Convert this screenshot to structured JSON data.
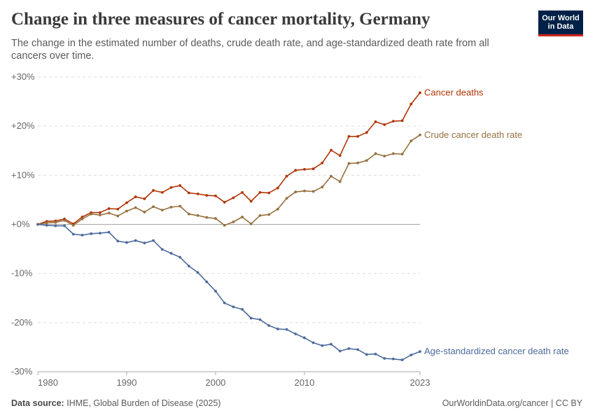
{
  "header": {
    "title": "Change in three measures of cancer mortality, Germany",
    "subtitle": "The change in the estimated number of deaths, crude death rate, and age-standardized death rate from all cancers over time.",
    "logo_line1": "Our World",
    "logo_line2": "in Data"
  },
  "footer": {
    "source_label": "Data source:",
    "source_text": "IHME, Global Burden of Disease (2025)",
    "credit": "OurWorldinData.org/cancer | CC BY"
  },
  "colors": {
    "cancer_deaths": "#b13507",
    "crude_rate": "#96703f",
    "age_standardized": "#4c6a9c",
    "grid": "#dddddd",
    "zero_line": "#a8a8a8",
    "axis_text": "#666666"
  },
  "chart_data": {
    "type": "line",
    "title": "Change in three measures of cancer mortality, Germany",
    "subtitle": "The change in the estimated number of deaths, crude death rate, and age-standardized death rate from all cancers over time.",
    "xlim": [
      1980,
      2023
    ],
    "ylim": [
      -30,
      30
    ],
    "y_ticks": [
      30,
      20,
      10,
      0,
      -10,
      -20,
      -30
    ],
    "y_tick_labels": [
      "+30%",
      "+20%",
      "+10%",
      "+0%",
      "-10%",
      "-20%",
      "-30%"
    ],
    "x_ticks": [
      1980,
      1990,
      2000,
      2010,
      2023
    ],
    "x_tick_labels": [
      "1980",
      "1990",
      "2000",
      "2010",
      "2023"
    ],
    "grid": "horizontal dashed",
    "legend": "line-end labels on the right",
    "x": [
      1980,
      1981,
      1982,
      1983,
      1984,
      1985,
      1986,
      1987,
      1988,
      1989,
      1990,
      1991,
      1992,
      1993,
      1994,
      1995,
      1996,
      1997,
      1998,
      1999,
      2000,
      2001,
      2002,
      2003,
      2004,
      2005,
      2006,
      2007,
      2008,
      2009,
      2010,
      2011,
      2012,
      2013,
      2014,
      2015,
      2016,
      2017,
      2018,
      2019,
      2020,
      2021,
      2022,
      2023
    ],
    "series": [
      {
        "name": "Cancer deaths",
        "key": "cancer_deaths",
        "values": [
          0,
          0.6,
          0.7,
          1.1,
          0.1,
          1.5,
          2.4,
          2.4,
          3.2,
          3.1,
          4.4,
          5.6,
          5.2,
          6.9,
          6.5,
          7.5,
          7.9,
          6.4,
          6.2,
          5.9,
          5.8,
          4.5,
          5.4,
          6.5,
          4.7,
          6.5,
          6.4,
          7.4,
          9.8,
          11.0,
          11.2,
          11.3,
          12.5,
          15.1,
          14.0,
          17.9,
          17.9,
          18.7,
          20.9,
          20.3,
          21.0,
          21.1,
          24.5,
          26.8
        ]
      },
      {
        "name": "Crude cancer death rate",
        "key": "crude_rate",
        "values": [
          0,
          0.3,
          0.4,
          0.8,
          -0.2,
          1.1,
          2.1,
          1.9,
          2.3,
          1.7,
          2.7,
          3.4,
          2.5,
          3.6,
          2.9,
          3.5,
          3.7,
          2.1,
          1.8,
          1.4,
          1.2,
          -0.2,
          0.5,
          1.5,
          0.1,
          1.8,
          2.0,
          3.1,
          5.3,
          6.6,
          6.8,
          6.7,
          7.6,
          9.8,
          8.7,
          12.4,
          12.5,
          13.0,
          14.4,
          13.9,
          14.4,
          14.3,
          17.0,
          18.2
        ]
      },
      {
        "name": "Age-standardized cancer death rate",
        "key": "age_standardized",
        "values": [
          0,
          -0.2,
          -0.3,
          -0.3,
          -2.0,
          -2.2,
          -1.9,
          -1.8,
          -1.6,
          -3.4,
          -3.7,
          -3.3,
          -3.8,
          -3.3,
          -5.1,
          -5.9,
          -6.7,
          -8.5,
          -9.8,
          -11.7,
          -13.6,
          -16.0,
          -16.8,
          -17.3,
          -19.1,
          -19.4,
          -20.6,
          -21.3,
          -21.4,
          -22.3,
          -23.1,
          -24.1,
          -24.7,
          -24.4,
          -25.8,
          -25.3,
          -25.5,
          -26.5,
          -26.4,
          -27.3,
          -27.4,
          -27.6,
          -26.6,
          -25.9
        ]
      }
    ]
  }
}
